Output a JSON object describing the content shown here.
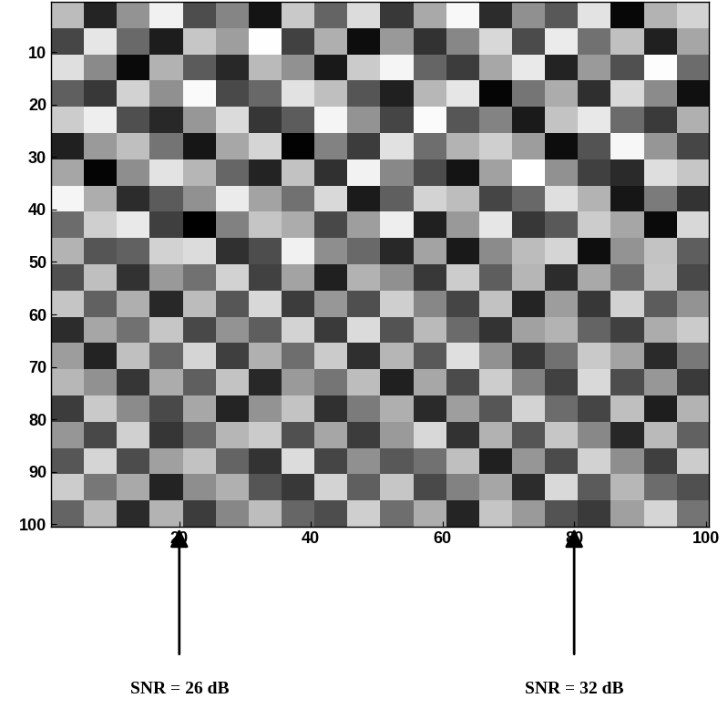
{
  "chart_data": {
    "type": "heatmap",
    "xlim": [
      0.5,
      100.5
    ],
    "ylim": [
      100.5,
      0.5
    ],
    "xticks": [
      20,
      40,
      60,
      80,
      100
    ],
    "yticks": [
      10,
      20,
      30,
      40,
      50,
      60,
      70,
      80,
      90,
      100
    ],
    "color": "gray",
    "cells": [
      [
        0.42,
        -0.61,
        0.15,
        0.78,
        -0.33,
        0.05,
        -0.72,
        0.51,
        -0.18,
        0.64,
        -0.47,
        0.29,
        0.83,
        -0.55,
        0.12,
        -0.26,
        0.69,
        -0.81,
        0.37,
        0.58
      ],
      [
        -0.38,
        0.71,
        -0.14,
        -0.66,
        0.49,
        0.22,
        0.87,
        -0.41,
        0.33,
        -0.77,
        0.18,
        -0.52,
        0.06,
        0.61,
        -0.35,
        0.74,
        -0.09,
        0.45,
        -0.63,
        0.27
      ],
      [
        0.66,
        0.08,
        -0.79,
        0.35,
        -0.24,
        -0.58,
        0.41,
        0.13,
        -0.69,
        0.52,
        0.81,
        -0.17,
        -0.44,
        0.28,
        0.73,
        -0.62,
        0.19,
        -0.31,
        0.86,
        -0.12
      ],
      [
        -0.21,
        -0.47,
        0.57,
        0.12,
        0.84,
        -0.36,
        -0.15,
        0.68,
        0.44,
        -0.28,
        -0.63,
        0.39,
        0.71,
        -0.82,
        -0.06,
        0.31,
        -0.54,
        0.62,
        0.09,
        -0.75
      ],
      [
        0.53,
        0.76,
        -0.32,
        -0.58,
        0.17,
        0.63,
        -0.49,
        -0.23,
        0.81,
        0.14,
        -0.39,
        0.85,
        -0.27,
        0.04,
        -0.68,
        0.47,
        0.72,
        -0.13,
        -0.46,
        0.34
      ],
      [
        -0.64,
        0.19,
        0.44,
        -0.07,
        -0.71,
        0.28,
        0.59,
        -0.84,
        0.03,
        -0.45,
        0.67,
        -0.11,
        0.36,
        0.55,
        0.21,
        -0.77,
        -0.29,
        0.82,
        0.16,
        -0.38
      ],
      [
        0.27,
        -0.83,
        0.11,
        0.69,
        0.38,
        -0.16,
        -0.62,
        0.46,
        -0.53,
        0.79,
        0.07,
        -0.34,
        -0.72,
        0.24,
        0.88,
        0.13,
        -0.42,
        -0.57,
        0.65,
        0.49
      ],
      [
        0.81,
        0.32,
        -0.56,
        -0.24,
        0.13,
        0.74,
        0.26,
        -0.08,
        0.62,
        -0.67,
        -0.21,
        0.58,
        0.43,
        -0.39,
        -0.15,
        0.66,
        0.37,
        -0.71,
        -0.02,
        -0.51
      ],
      [
        -0.12,
        0.55,
        0.73,
        -0.43,
        -0.86,
        0.02,
        0.48,
        0.31,
        -0.37,
        0.22,
        0.76,
        -0.64,
        0.18,
        0.71,
        -0.48,
        -0.25,
        0.53,
        0.27,
        -0.79,
        0.61
      ],
      [
        0.36,
        -0.28,
        -0.19,
        0.57,
        0.64,
        -0.53,
        -0.33,
        0.78,
        0.11,
        -0.14,
        -0.58,
        0.25,
        -0.69,
        0.09,
        0.42,
        0.59,
        -0.76,
        0.14,
        0.47,
        -0.22
      ],
      [
        -0.31,
        0.44,
        -0.52,
        0.18,
        -0.09,
        0.57,
        -0.41,
        0.26,
        -0.63,
        0.35,
        0.12,
        -0.47,
        0.53,
        -0.22,
        0.38,
        -0.56,
        0.29,
        -0.14,
        0.49,
        -0.36
      ],
      [
        0.48,
        -0.19,
        0.33,
        -0.58,
        0.42,
        -0.27,
        0.61,
        -0.44,
        0.17,
        -0.32,
        0.55,
        0.06,
        -0.39,
        0.46,
        -0.61,
        0.21,
        -0.48,
        0.57,
        -0.23,
        0.14
      ],
      [
        -0.55,
        0.27,
        -0.08,
        0.49,
        -0.37,
        0.15,
        -0.22,
        0.58,
        -0.46,
        0.63,
        -0.29,
        0.41,
        -0.13,
        -0.51,
        0.24,
        0.36,
        -0.18,
        -0.42,
        0.31,
        0.52
      ],
      [
        0.21,
        -0.62,
        0.45,
        -0.16,
        0.59,
        -0.43,
        0.34,
        -0.11,
        0.52,
        -0.54,
        0.38,
        -0.25,
        0.66,
        0.13,
        -0.47,
        -0.09,
        0.51,
        0.26,
        -0.57,
        -0.04
      ],
      [
        0.39,
        0.13,
        -0.49,
        0.31,
        -0.21,
        0.47,
        -0.58,
        0.19,
        -0.06,
        0.43,
        -0.64,
        0.28,
        -0.35,
        0.54,
        0.02,
        -0.41,
        0.62,
        -0.33,
        0.17,
        -0.46
      ],
      [
        -0.44,
        0.51,
        0.09,
        -0.36,
        0.28,
        -0.61,
        0.14,
        0.47,
        -0.53,
        -0.02,
        0.33,
        -0.57,
        0.22,
        -0.27,
        0.58,
        -0.12,
        -0.39,
        0.44,
        -0.65,
        0.36
      ],
      [
        0.16,
        -0.37,
        0.56,
        -0.49,
        -0.14,
        0.38,
        0.52,
        -0.31,
        0.27,
        -0.45,
        0.19,
        0.61,
        -0.52,
        0.35,
        -0.28,
        0.49,
        0.07,
        -0.59,
        0.41,
        -0.19
      ],
      [
        -0.27,
        0.59,
        -0.34,
        0.23,
        0.46,
        -0.18,
        -0.51,
        0.64,
        -0.39,
        0.12,
        -0.26,
        -0.08,
        0.44,
        -0.63,
        0.16,
        -0.35,
        0.57,
        0.11,
        -0.43,
        0.53
      ],
      [
        0.53,
        -0.05,
        0.29,
        -0.62,
        0.11,
        0.34,
        -0.28,
        -0.47,
        0.58,
        -0.21,
        0.49,
        -0.36,
        0.03,
        0.27,
        -0.55,
        0.62,
        -0.24,
        0.39,
        -0.12,
        -0.31
      ],
      [
        -0.18,
        0.41,
        -0.57,
        0.36,
        -0.44,
        0.06,
        0.43,
        -0.16,
        -0.33,
        0.55,
        -0.11,
        0.32,
        -0.61,
        0.48,
        0.19,
        -0.29,
        -0.46,
        0.23,
        0.59,
        -0.07
      ]
    ],
    "annotations": [
      {
        "text": "SNR = 26 dB",
        "x": 20
      },
      {
        "text": "SNR = 32 dB",
        "x": 80
      }
    ]
  }
}
